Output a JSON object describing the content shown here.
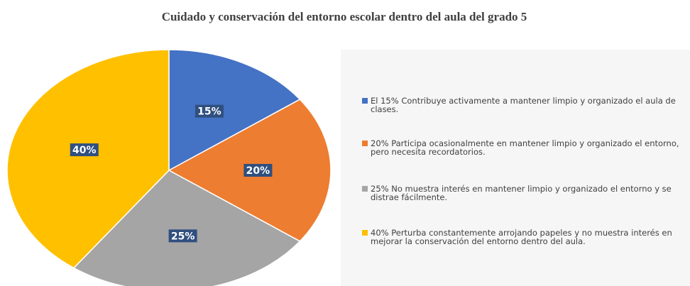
{
  "chart_data": {
    "type": "pie",
    "title": "Cuidado y conservación del entorno escolar dentro del aula del grado 5",
    "categories": [
      "El 15% Contribuye activamente a mantener limpio y organizado el aula de clases.",
      "20% Participa ocasionalmente en mantener limpio y organizado el entorno, pero necesita recordatorios.",
      "25% No muestra interés en mantener limpio y organizado el entorno y se distrae fácilmente.",
      "40% Perturba constantemente arrojando papeles y no muestra interés en mejorar la conservación del entorno dentro del aula."
    ],
    "values": [
      15,
      20,
      25,
      40
    ],
    "value_labels": [
      "15%",
      "20%",
      "25%",
      "40%"
    ],
    "colors": [
      "#4472c4",
      "#ed7d31",
      "#a5a5a5",
      "#ffc000"
    ],
    "legend": "right"
  }
}
